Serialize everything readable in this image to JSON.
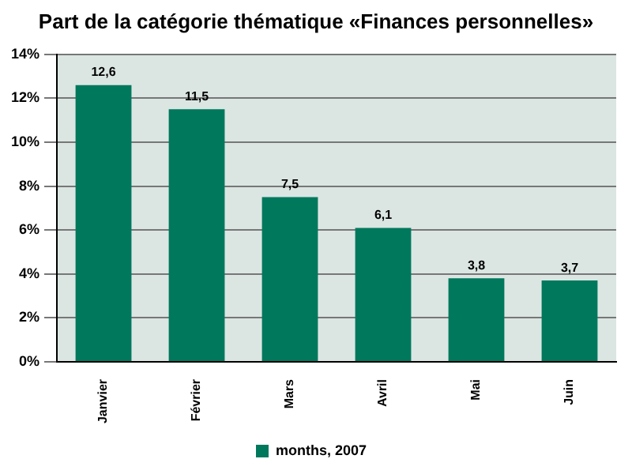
{
  "chart_data": {
    "type": "bar",
    "title": "Part de la catégorie thématique «Finances personnelles»",
    "categories": [
      "Janvier",
      "Février",
      "Mars",
      "Avril",
      "Mai",
      "Juin"
    ],
    "series": [
      {
        "name": "months, 2007",
        "color": "#00785c",
        "values": [
          12.6,
          11.5,
          7.5,
          6.1,
          3.8,
          3.7
        ],
        "value_labels": [
          "12,6",
          "11,5",
          "7,5",
          "6,1",
          "3,8",
          "3,7"
        ]
      }
    ],
    "ylim": [
      0,
      14
    ],
    "yticks": [
      {
        "value": 0,
        "label": "0%"
      },
      {
        "value": 2,
        "label": "2%"
      },
      {
        "value": 4,
        "label": "4%"
      },
      {
        "value": 6,
        "label": "6%"
      },
      {
        "value": 8,
        "label": "8%"
      },
      {
        "value": 10,
        "label": "10%"
      },
      {
        "value": 12,
        "label": "12%"
      },
      {
        "value": 14,
        "label": "14%"
      }
    ],
    "grid": "y",
    "legend": "bottom"
  }
}
